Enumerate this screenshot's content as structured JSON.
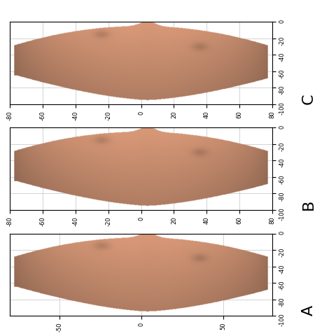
{
  "chart_data": [
    {
      "type": "surface",
      "title": "C",
      "xlim": [
        -80,
        80
      ],
      "ylim": [
        -100,
        0
      ],
      "xticks": [
        -80,
        -60,
        -40,
        -20,
        0,
        20,
        40,
        60,
        80
      ],
      "yticks": [
        0,
        -20,
        -40,
        -60,
        -80,
        -100
      ],
      "grid": true
    },
    {
      "type": "surface",
      "title": "B",
      "xlim": [
        -80,
        80
      ],
      "ylim": [
        -100,
        0
      ],
      "xticks": [
        -80,
        -60,
        -40,
        -20,
        0,
        20,
        40,
        60,
        80
      ],
      "yticks": [
        0,
        -20,
        -40,
        -60,
        -80,
        -100
      ],
      "grid": true
    },
    {
      "type": "surface",
      "title": "A",
      "xlim": [
        -80,
        80
      ],
      "ylim": [
        -100,
        0
      ],
      "xticks": [
        -50,
        0,
        50
      ],
      "yticks": [
        0,
        -20,
        -40,
        -60,
        -80,
        -100
      ],
      "grid": true
    }
  ]
}
